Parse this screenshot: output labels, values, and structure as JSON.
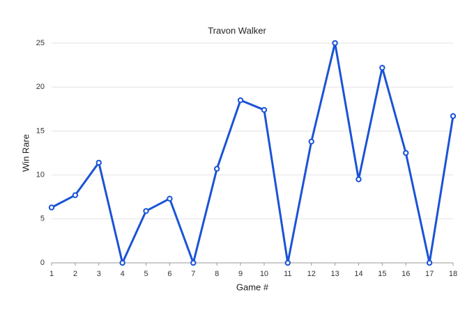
{
  "chart_data": {
    "type": "line",
    "title": "Travon Walker",
    "x_label": "Game #",
    "y_label": "Win Rare",
    "x": [
      1,
      2,
      3,
      4,
      5,
      6,
      7,
      8,
      9,
      10,
      11,
      12,
      13,
      14,
      15,
      16,
      17,
      18
    ],
    "series": [
      {
        "name": "Win Rare",
        "color": "#1a53d6",
        "values": [
          6.3,
          7.7,
          11.4,
          0,
          5.9,
          7.3,
          0,
          10.7,
          18.5,
          17.4,
          0,
          13.8,
          25,
          9.5,
          22.2,
          12.5,
          0,
          16.7
        ]
      }
    ],
    "xlim": [
      1,
      18
    ],
    "xticks": [
      1,
      2,
      3,
      4,
      5,
      6,
      7,
      8,
      9,
      10,
      11,
      12,
      13,
      14,
      15,
      16,
      17,
      18
    ],
    "ylim": [
      0,
      25
    ],
    "yticks": [
      0,
      5,
      10,
      15,
      20,
      25
    ],
    "grid": true
  }
}
